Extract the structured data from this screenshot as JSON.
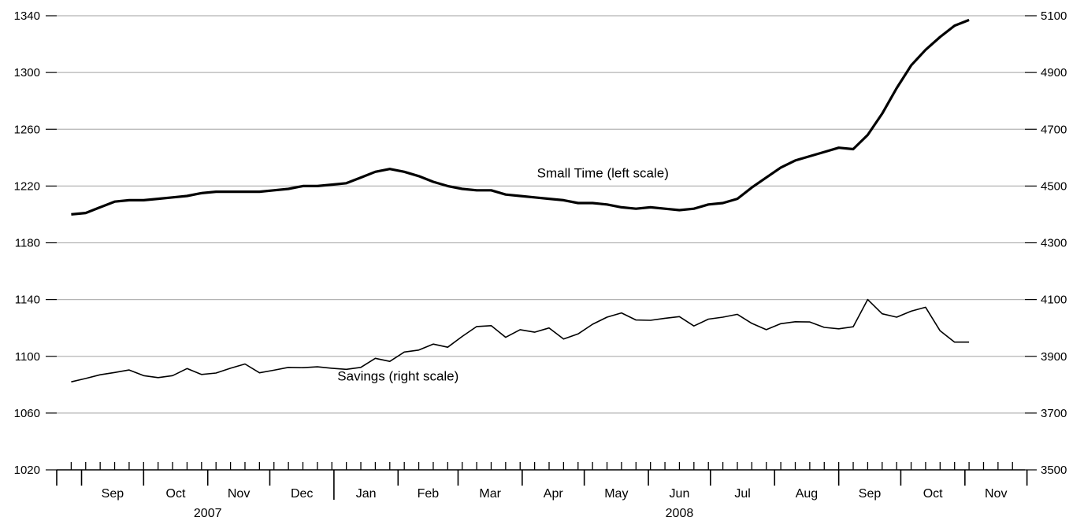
{
  "chart_data": {
    "type": "line",
    "title": "",
    "grid": true,
    "x_range": [
      "2007-08-20",
      "2008-11-30"
    ],
    "y_left": {
      "range": [
        1020,
        1340
      ],
      "ticks": [
        "1020",
        "1060",
        "1100",
        "1140",
        "1180",
        "1220",
        "1260",
        "1300",
        "1340"
      ]
    },
    "y_right": {
      "range": [
        3500,
        5100
      ],
      "ticks": [
        "3500",
        "3700",
        "3900",
        "4100",
        "4300",
        "4500",
        "4700",
        "4900",
        "5100"
      ]
    },
    "months": [
      "Sep",
      "Oct",
      "Nov",
      "Dec",
      "Jan",
      "Feb",
      "Mar",
      "Apr",
      "May",
      "Jun",
      "Jul",
      "Aug",
      "Sep",
      "Oct",
      "Nov"
    ],
    "month_starts": [
      "2007-09-01",
      "2007-10-01",
      "2007-11-01",
      "2007-12-01",
      "2008-01-01",
      "2008-02-01",
      "2008-03-01",
      "2008-04-01",
      "2008-05-01",
      "2008-06-01",
      "2008-07-01",
      "2008-08-01",
      "2008-09-01",
      "2008-10-01",
      "2008-11-01",
      "2008-12-01"
    ],
    "years": [
      {
        "label": "2007",
        "from": "2007-09-01",
        "to": "2008-01-01"
      },
      {
        "label": "2008",
        "from": "2008-01-01",
        "to": "2008-12-01"
      }
    ],
    "series": [
      {
        "name": "Small Time",
        "axis": "left",
        "annotation": "Small Time (left scale)",
        "annotation_at": {
          "x": "2008-05-10",
          "y": 1226
        },
        "x": [
          "2007-08-27",
          "2007-09-03",
          "2007-09-10",
          "2007-09-17",
          "2007-09-24",
          "2007-10-01",
          "2007-10-08",
          "2007-10-15",
          "2007-10-22",
          "2007-10-29",
          "2007-11-05",
          "2007-11-12",
          "2007-11-19",
          "2007-11-26",
          "2007-12-03",
          "2007-12-10",
          "2007-12-17",
          "2007-12-24",
          "2007-12-31",
          "2008-01-07",
          "2008-01-14",
          "2008-01-21",
          "2008-01-28",
          "2008-02-04",
          "2008-02-11",
          "2008-02-18",
          "2008-02-25",
          "2008-03-03",
          "2008-03-10",
          "2008-03-17",
          "2008-03-24",
          "2008-03-31",
          "2008-04-07",
          "2008-04-14",
          "2008-04-21",
          "2008-04-28",
          "2008-05-05",
          "2008-05-12",
          "2008-05-19",
          "2008-05-26",
          "2008-06-02",
          "2008-06-09",
          "2008-06-16",
          "2008-06-23",
          "2008-06-30",
          "2008-07-07",
          "2008-07-14",
          "2008-07-21",
          "2008-07-28",
          "2008-08-04",
          "2008-08-11",
          "2008-08-18",
          "2008-08-25",
          "2008-09-01",
          "2008-09-08",
          "2008-09-15",
          "2008-09-22",
          "2008-09-29",
          "2008-10-06",
          "2008-10-13",
          "2008-10-20",
          "2008-10-27",
          "2008-11-03"
        ],
        "values": [
          1200,
          1201,
          1205,
          1209,
          1210,
          1210,
          1211,
          1212,
          1213,
          1215,
          1216,
          1216,
          1216,
          1216,
          1217,
          1218,
          1220,
          1220,
          1221,
          1222,
          1226,
          1230,
          1232,
          1230,
          1227,
          1223,
          1220,
          1218,
          1217,
          1217,
          1214,
          1213,
          1212,
          1211,
          1210,
          1208,
          1208,
          1207,
          1205,
          1204,
          1205,
          1204,
          1203,
          1204,
          1207,
          1208,
          1211,
          1219,
          1226,
          1233,
          1238,
          1241,
          1244,
          1247,
          1246,
          1256,
          1271,
          1289,
          1305,
          1316,
          1325,
          1333,
          1337
        ]
      },
      {
        "name": "Savings",
        "axis": "right",
        "annotation": "Savings (right scale)",
        "annotation_at": {
          "x": "2008-02-01",
          "y": 1083
        },
        "x": [
          "2007-08-27",
          "2007-09-03",
          "2007-09-10",
          "2007-09-17",
          "2007-09-24",
          "2007-10-01",
          "2007-10-08",
          "2007-10-15",
          "2007-10-22",
          "2007-10-29",
          "2007-11-05",
          "2007-11-12",
          "2007-11-19",
          "2007-11-26",
          "2007-12-03",
          "2007-12-10",
          "2007-12-17",
          "2007-12-24",
          "2007-12-31",
          "2008-01-07",
          "2008-01-14",
          "2008-01-21",
          "2008-01-28",
          "2008-02-04",
          "2008-02-11",
          "2008-02-18",
          "2008-02-25",
          "2008-03-03",
          "2008-03-10",
          "2008-03-17",
          "2008-03-24",
          "2008-03-31",
          "2008-04-07",
          "2008-04-14",
          "2008-04-21",
          "2008-04-28",
          "2008-05-05",
          "2008-05-12",
          "2008-05-19",
          "2008-05-26",
          "2008-06-02",
          "2008-06-09",
          "2008-06-16",
          "2008-06-23",
          "2008-06-30",
          "2008-07-07",
          "2008-07-14",
          "2008-07-21",
          "2008-07-28",
          "2008-08-04",
          "2008-08-11",
          "2008-08-18",
          "2008-08-25",
          "2008-09-01",
          "2008-09-08",
          "2008-09-15",
          "2008-09-22",
          "2008-09-29",
          "2008-10-06",
          "2008-10-13",
          "2008-10-20",
          "2008-10-27",
          "2008-11-03"
        ],
        "values": [
          3810,
          3822,
          3835,
          3843,
          3852,
          3832,
          3825,
          3832,
          3857,
          3836,
          3841,
          3858,
          3873,
          3842,
          3851,
          3861,
          3860,
          3863,
          3858,
          3854,
          3861,
          3893,
          3882,
          3915,
          3922,
          3943,
          3932,
          3970,
          4005,
          4008,
          3967,
          3994,
          3985,
          4000,
          3961,
          3979,
          4013,
          4038,
          4053,
          4028,
          4027,
          4034,
          4040,
          4007,
          4031,
          4038,
          4048,
          4016,
          3994,
          4015,
          4022,
          4021,
          4002,
          3997,
          4004,
          4100,
          4050,
          4038,
          4059,
          4073,
          3990,
          3950,
          3950
        ]
      }
    ]
  }
}
